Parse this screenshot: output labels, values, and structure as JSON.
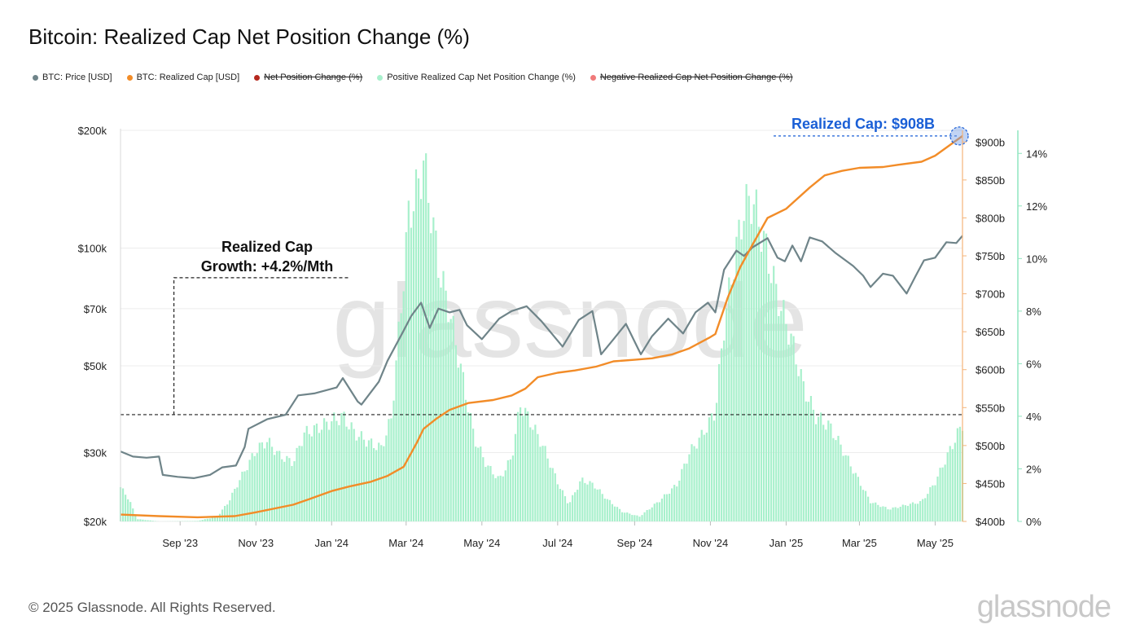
{
  "title": "Bitcoin: Realized Cap Net Position Change (%)",
  "legend": [
    {
      "label": "BTC: Price [USD]",
      "color": "#6f8489",
      "enabled": true
    },
    {
      "label": "BTC: Realized Cap [USD]",
      "color": "#f28c28",
      "enabled": true
    },
    {
      "label": "Net Position Change (%)",
      "color": "#b5281e",
      "enabled": false
    },
    {
      "label": "Positive Realized Cap Net Position Change (%)",
      "color": "#a8f0cc",
      "enabled": true
    },
    {
      "label": "Negative Realized Cap Net Position Change (%)",
      "color": "#f07a7a",
      "enabled": false
    }
  ],
  "annotations": {
    "growth_line1": "Realized Cap",
    "growth_line2": "Growth: +4.2%/Mth",
    "realized_cap": "Realized Cap: $908B"
  },
  "watermark": "glassnode",
  "footer": {
    "copyright": "© 2025 Glassnode. All Rights Reserved.",
    "brand": "glassnode"
  },
  "chart_data": {
    "type": "line",
    "title": "Bitcoin: Realized Cap Net Position Change (%)",
    "x_tick_labels": [
      "Sep '23",
      "Nov '23",
      "Jan '24",
      "Mar '24",
      "May '24",
      "Jul '24",
      "Sep '24",
      "Nov '24",
      "Jan '25",
      "Mar '25",
      "May '25"
    ],
    "x_range": [
      "2023-07-15",
      "2025-05-23"
    ],
    "y_left": {
      "scale": "log",
      "range": [
        20000,
        200000
      ],
      "tick_values": [
        20000,
        30000,
        50000,
        70000,
        100000,
        200000
      ],
      "tick_labels": [
        "$20k",
        "$30k",
        "$50k",
        "$70k",
        "$100k",
        "$200k"
      ]
    },
    "y_right1": {
      "scale": "linear",
      "range": [
        400,
        910
      ],
      "tick_values": [
        400,
        450,
        500,
        550,
        600,
        650,
        700,
        750,
        800,
        850,
        900
      ],
      "tick_labels": [
        "$400b",
        "$450b",
        "$500b",
        "$550b",
        "$600b",
        "$650b",
        "$700b",
        "$750b",
        "$800b",
        "$850b",
        "$900b"
      ]
    },
    "y_right2": {
      "scale": "linear",
      "range": [
        0,
        15
      ],
      "tick_values": [
        0,
        2,
        4,
        6,
        8,
        10,
        12,
        14
      ],
      "tick_labels": [
        "0%",
        "2%",
        "4%",
        "6%",
        "8%",
        "10%",
        "12%",
        "14%"
      ]
    },
    "grid": true,
    "legend_position": "top-left",
    "series": [
      {
        "name": "BTC: Price [USD]",
        "axis": "left",
        "color": "#6f8489",
        "kind": "line",
        "points": [
          [
            "2023-07-15",
            30200
          ],
          [
            "2023-07-25",
            29300
          ],
          [
            "2023-08-05",
            29100
          ],
          [
            "2023-08-15",
            29300
          ],
          [
            "2023-08-18",
            26300
          ],
          [
            "2023-08-30",
            26000
          ],
          [
            "2023-09-12",
            25800
          ],
          [
            "2023-09-25",
            26300
          ],
          [
            "2023-10-05",
            27500
          ],
          [
            "2023-10-16",
            27800
          ],
          [
            "2023-10-23",
            31000
          ],
          [
            "2023-10-26",
            34500
          ],
          [
            "2023-11-10",
            36500
          ],
          [
            "2023-11-25",
            37500
          ],
          [
            "2023-12-05",
            42000
          ],
          [
            "2023-12-18",
            42500
          ],
          [
            "2024-01-05",
            44000
          ],
          [
            "2024-01-10",
            46500
          ],
          [
            "2024-01-22",
            40500
          ],
          [
            "2024-01-25",
            39800
          ],
          [
            "2024-02-08",
            45500
          ],
          [
            "2024-02-15",
            51500
          ],
          [
            "2024-02-28",
            61500
          ],
          [
            "2024-03-05",
            67000
          ],
          [
            "2024-03-13",
            72500
          ],
          [
            "2024-03-20",
            62500
          ],
          [
            "2024-03-27",
            70000
          ],
          [
            "2024-04-05",
            68500
          ],
          [
            "2024-04-13",
            69500
          ],
          [
            "2024-04-19",
            63500
          ],
          [
            "2024-05-01",
            58500
          ],
          [
            "2024-05-15",
            66000
          ],
          [
            "2024-05-25",
            69000
          ],
          [
            "2024-06-06",
            71000
          ],
          [
            "2024-06-18",
            65000
          ],
          [
            "2024-07-05",
            56000
          ],
          [
            "2024-07-18",
            65500
          ],
          [
            "2024-07-29",
            69000
          ],
          [
            "2024-08-05",
            53500
          ],
          [
            "2024-08-15",
            58500
          ],
          [
            "2024-08-25",
            64000
          ],
          [
            "2024-09-06",
            53500
          ],
          [
            "2024-09-15",
            59500
          ],
          [
            "2024-09-28",
            66000
          ],
          [
            "2024-10-10",
            60500
          ],
          [
            "2024-10-20",
            68500
          ],
          [
            "2024-10-30",
            72500
          ],
          [
            "2024-11-05",
            68500
          ],
          [
            "2024-11-12",
            88000
          ],
          [
            "2024-11-22",
            98500
          ],
          [
            "2024-11-28",
            95500
          ],
          [
            "2024-12-05",
            100500
          ],
          [
            "2024-12-17",
            106000
          ],
          [
            "2024-12-25",
            94500
          ],
          [
            "2024-12-31",
            92500
          ],
          [
            "2025-01-06",
            101500
          ],
          [
            "2025-01-13",
            92500
          ],
          [
            "2025-01-20",
            106500
          ],
          [
            "2025-01-30",
            104000
          ],
          [
            "2025-02-10",
            97000
          ],
          [
            "2025-02-24",
            90000
          ],
          [
            "2025-03-04",
            85000
          ],
          [
            "2025-03-10",
            79500
          ],
          [
            "2025-03-20",
            86000
          ],
          [
            "2025-03-28",
            85000
          ],
          [
            "2025-04-08",
            76500
          ],
          [
            "2025-04-15",
            84500
          ],
          [
            "2025-04-22",
            93000
          ],
          [
            "2025-05-01",
            94500
          ],
          [
            "2025-05-10",
            103500
          ],
          [
            "2025-05-18",
            103000
          ],
          [
            "2025-05-23",
            107500
          ]
        ]
      },
      {
        "name": "BTC: Realized Cap [USD]",
        "axis": "right1",
        "color": "#f28c28",
        "kind": "line",
        "points": [
          [
            "2023-07-15",
            409
          ],
          [
            "2023-08-15",
            407
          ],
          [
            "2023-09-15",
            405.5
          ],
          [
            "2023-10-15",
            407
          ],
          [
            "2023-11-01",
            412
          ],
          [
            "2023-12-01",
            422
          ],
          [
            "2023-12-15",
            430
          ],
          [
            "2024-01-01",
            440
          ],
          [
            "2024-01-15",
            446
          ],
          [
            "2024-02-01",
            452
          ],
          [
            "2024-02-15",
            460
          ],
          [
            "2024-02-28",
            472
          ],
          [
            "2024-03-05",
            490
          ],
          [
            "2024-03-10",
            505
          ],
          [
            "2024-03-15",
            522
          ],
          [
            "2024-03-25",
            535
          ],
          [
            "2024-04-05",
            547
          ],
          [
            "2024-04-20",
            556
          ],
          [
            "2024-05-10",
            560
          ],
          [
            "2024-05-25",
            566
          ],
          [
            "2024-06-05",
            575
          ],
          [
            "2024-06-15",
            590
          ],
          [
            "2024-07-01",
            596
          ],
          [
            "2024-07-15",
            599
          ],
          [
            "2024-08-01",
            604
          ],
          [
            "2024-08-15",
            611
          ],
          [
            "2024-09-01",
            613
          ],
          [
            "2024-09-15",
            615
          ],
          [
            "2024-10-01",
            620
          ],
          [
            "2024-10-15",
            628
          ],
          [
            "2024-10-31",
            642
          ],
          [
            "2024-11-05",
            647
          ],
          [
            "2024-11-15",
            695
          ],
          [
            "2024-11-25",
            735
          ],
          [
            "2024-12-05",
            765
          ],
          [
            "2024-12-17",
            800
          ],
          [
            "2025-01-01",
            812
          ],
          [
            "2025-01-20",
            840
          ],
          [
            "2025-02-01",
            856
          ],
          [
            "2025-02-15",
            862
          ],
          [
            "2025-03-01",
            866
          ],
          [
            "2025-03-20",
            867
          ],
          [
            "2025-04-01",
            870
          ],
          [
            "2025-04-20",
            874
          ],
          [
            "2025-05-01",
            882
          ],
          [
            "2025-05-23",
            908
          ]
        ]
      },
      {
        "name": "Positive Realized Cap Net Position Change (%)",
        "axis": "right2",
        "color": "#a8f0cc",
        "kind": "bar",
        "points": [
          [
            "2023-07-15",
            1.4
          ],
          [
            "2023-07-22",
            0.9
          ],
          [
            "2023-07-28",
            0.1
          ],
          [
            "2023-08-15",
            0.0
          ],
          [
            "2023-09-15",
            0.02
          ],
          [
            "2023-10-01",
            0.2
          ],
          [
            "2023-10-10",
            0.8
          ],
          [
            "2023-10-20",
            1.8
          ],
          [
            "2023-11-01",
            2.9
          ],
          [
            "2023-11-10",
            3.3
          ],
          [
            "2023-11-20",
            2.7
          ],
          [
            "2023-12-01",
            2.4
          ],
          [
            "2023-12-10",
            3.6
          ],
          [
            "2023-12-20",
            3.8
          ],
          [
            "2024-01-01",
            4.1
          ],
          [
            "2024-01-10",
            4.3
          ],
          [
            "2024-01-20",
            3.6
          ],
          [
            "2024-02-01",
            3.2
          ],
          [
            "2024-02-10",
            3.0
          ],
          [
            "2024-02-18",
            4.2
          ],
          [
            "2024-02-25",
            8.2
          ],
          [
            "2024-03-03",
            12.5
          ],
          [
            "2024-03-10",
            13.6
          ],
          [
            "2024-03-15",
            14.7
          ],
          [
            "2024-03-20",
            13.0
          ],
          [
            "2024-03-28",
            10.2
          ],
          [
            "2024-04-05",
            8.6
          ],
          [
            "2024-04-15",
            6.0
          ],
          [
            "2024-04-25",
            3.4
          ],
          [
            "2024-05-05",
            2.3
          ],
          [
            "2024-05-15",
            1.7
          ],
          [
            "2024-05-25",
            2.6
          ],
          [
            "2024-06-01",
            4.8
          ],
          [
            "2024-06-10",
            4.0
          ],
          [
            "2024-06-20",
            3.0
          ],
          [
            "2024-07-01",
            1.6
          ],
          [
            "2024-07-10",
            0.7
          ],
          [
            "2024-07-20",
            1.7
          ],
          [
            "2024-07-30",
            1.5
          ],
          [
            "2024-08-10",
            0.9
          ],
          [
            "2024-08-22",
            0.4
          ],
          [
            "2024-09-05",
            0.2
          ],
          [
            "2024-09-20",
            0.8
          ],
          [
            "2024-10-05",
            1.5
          ],
          [
            "2024-10-15",
            2.8
          ],
          [
            "2024-10-25",
            3.5
          ],
          [
            "2024-11-05",
            4.5
          ],
          [
            "2024-11-12",
            8.0
          ],
          [
            "2024-11-20",
            10.6
          ],
          [
            "2024-11-28",
            12.8
          ],
          [
            "2024-12-05",
            13.2
          ],
          [
            "2024-12-15",
            11.3
          ],
          [
            "2024-12-25",
            9.2
          ],
          [
            "2025-01-05",
            7.5
          ],
          [
            "2025-01-15",
            5.5
          ],
          [
            "2025-01-25",
            4.3
          ],
          [
            "2025-02-05",
            3.9
          ],
          [
            "2025-02-15",
            3.0
          ],
          [
            "2025-02-25",
            2.0
          ],
          [
            "2025-03-10",
            0.8
          ],
          [
            "2025-03-25",
            0.5
          ],
          [
            "2025-04-10",
            0.7
          ],
          [
            "2025-04-20",
            0.8
          ],
          [
            "2025-05-01",
            1.6
          ],
          [
            "2025-05-10",
            2.6
          ],
          [
            "2025-05-23",
            4.0
          ]
        ]
      }
    ],
    "annotation_lines": {
      "growth_level_usd": 37500,
      "growth_start": "2023-08-27",
      "growth_top_usd": 84000,
      "realized_cap_value": 908
    }
  }
}
